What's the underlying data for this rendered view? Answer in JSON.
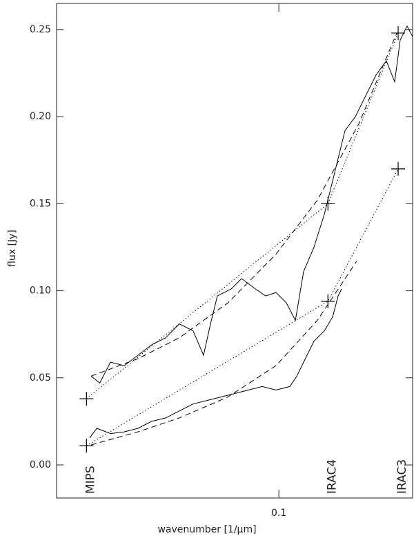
{
  "chart_data": {
    "type": "line",
    "xlabel": "wavenumber [1/μm]",
    "ylabel": "flux [Jy]",
    "xscale": "log",
    "xlim": [
      0.0364,
      0.1837
    ],
    "ylim": [
      -0.019,
      0.265
    ],
    "xticks": [
      0.1
    ],
    "yticks": [
      {
        "value": 0,
        "label": "0.00"
      },
      {
        "value": 0.05,
        "label": "0.05"
      },
      {
        "value": 0.1,
        "label": "0.10"
      },
      {
        "value": 0.15,
        "label": "0.15"
      },
      {
        "value": 0.2,
        "label": "0.20"
      },
      {
        "value": 0.25,
        "label": "0.25"
      }
    ],
    "annotations": [
      {
        "text": "MIPS",
        "x": 0.0417
      },
      {
        "text": "IRAC4",
        "x": 0.125
      },
      {
        "text": "IRAC3",
        "x": 0.172
      }
    ],
    "series": [
      {
        "style": "solid",
        "color": "#000000",
        "x": [
          0.0426,
          0.0443,
          0.0465,
          0.0495,
          0.0527,
          0.0561,
          0.0598,
          0.0636,
          0.0677,
          0.071,
          0.0733,
          0.0756,
          0.0805,
          0.0844,
          0.0899,
          0.0942,
          0.0987,
          0.1035,
          0.1078,
          0.1119,
          0.1173,
          0.123,
          0.1289,
          0.1351,
          0.1416,
          0.1484,
          0.1556,
          0.163,
          0.1693,
          0.1736,
          0.1791,
          0.1837
        ],
        "values": [
          0.051,
          0.047,
          0.059,
          0.057,
          0.063,
          0.069,
          0.073,
          0.081,
          0.077,
          0.063,
          0.081,
          0.097,
          0.101,
          0.107,
          0.101,
          0.097,
          0.099,
          0.093,
          0.083,
          0.111,
          0.125,
          0.144,
          0.168,
          0.192,
          0.2,
          0.212,
          0.224,
          0.232,
          0.22,
          0.244,
          0.252,
          0.246
        ]
      },
      {
        "style": "solid",
        "color": "#000000",
        "x": [
          0.0423,
          0.0437,
          0.0465,
          0.0495,
          0.0527,
          0.0561,
          0.0598,
          0.0636,
          0.0677,
          0.0721,
          0.0768,
          0.0818,
          0.087,
          0.0927,
          0.0987,
          0.1051,
          0.1085,
          0.1119,
          0.1173,
          0.123,
          0.1277,
          0.1309,
          0.133
        ],
        "values": [
          0.0155,
          0.021,
          0.018,
          0.019,
          0.021,
          0.025,
          0.027,
          0.031,
          0.035,
          0.037,
          0.039,
          0.041,
          0.043,
          0.045,
          0.043,
          0.045,
          0.051,
          0.059,
          0.071,
          0.077,
          0.085,
          0.097,
          0.101
        ]
      },
      {
        "style": "dashed",
        "color": "#000000",
        "x": [
          0.0426,
          0.0527,
          0.0636,
          0.0793,
          0.0987,
          0.1191,
          0.1439,
          0.1709
        ],
        "values": [
          0.051,
          0.061,
          0.073,
          0.093,
          0.121,
          0.152,
          0.196,
          0.248
        ]
      },
      {
        "style": "dashed",
        "color": "#000000",
        "x": [
          0.0426,
          0.0527,
          0.0636,
          0.0793,
          0.0987,
          0.1191,
          0.1425
        ],
        "values": [
          0.0115,
          0.019,
          0.027,
          0.039,
          0.057,
          0.083,
          0.117
        ]
      },
      {
        "style": "dotted",
        "color": "#000000",
        "x": [
          0.0417,
          0.125,
          0.172
        ],
        "values": [
          0.038,
          0.15,
          0.248
        ]
      },
      {
        "style": "dotted",
        "color": "#000000",
        "x": [
          0.0417,
          0.125,
          0.172
        ],
        "values": [
          0.011,
          0.094,
          0.17
        ]
      },
      {
        "style": "markers",
        "color": "#000000",
        "x": [
          0.0417,
          0.0417,
          0.125,
          0.125,
          0.172,
          0.172
        ],
        "values": [
          0.038,
          0.011,
          0.15,
          0.094,
          0.248,
          0.17
        ]
      }
    ]
  }
}
